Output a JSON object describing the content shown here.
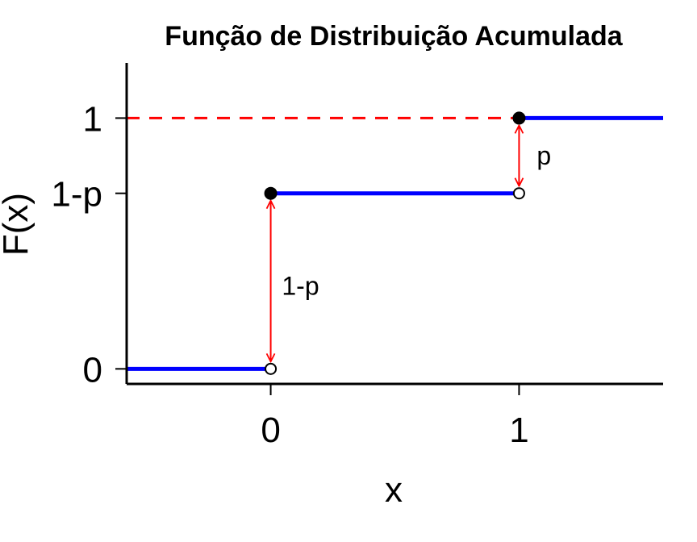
{
  "chart_data": {
    "type": "line",
    "title": "Função de Distribuição Acumulada",
    "xlabel": "x",
    "ylabel": "F(x)",
    "xlim": [
      -0.58,
      1.58
    ],
    "ylim": [
      -0.06,
      1.22
    ],
    "p": 0.3,
    "x_ticks": [
      {
        "value": 0,
        "label": "0"
      },
      {
        "value": 1,
        "label": "1"
      }
    ],
    "y_ticks": [
      {
        "value": 0,
        "label": "0"
      },
      {
        "value": 0.7,
        "label": "1-p"
      },
      {
        "value": 1,
        "label": "1"
      }
    ],
    "steps": [
      {
        "x0": -0.58,
        "x1": 0,
        "y": 0
      },
      {
        "x0": 0,
        "x1": 1,
        "y": 0.7
      },
      {
        "x0": 1,
        "x1": 1.58,
        "y": 1
      }
    ],
    "closed_points": [
      {
        "x": 0,
        "y": 0.7
      },
      {
        "x": 1,
        "y": 1
      }
    ],
    "open_points": [
      {
        "x": 0,
        "y": 0
      },
      {
        "x": 1,
        "y": 0.7
      }
    ],
    "reference_line": {
      "y": 1,
      "from_x": -0.58,
      "to_x": 1,
      "style": "dashed",
      "color": "#ff0000"
    },
    "jumps": [
      {
        "x": 0,
        "y0": 0,
        "y1": 0.7,
        "label": "1-p",
        "label_x": 0.12,
        "label_y": 0.33
      },
      {
        "x": 1,
        "y0": 0.7,
        "y1": 1,
        "label": "p",
        "label_x": 1.1,
        "label_y": 0.85
      }
    ],
    "colors": {
      "step": "#0000ff",
      "arrow": "#ff0000",
      "axis": "#000000",
      "point": "#000000"
    },
    "grid": false,
    "legend": "none"
  }
}
